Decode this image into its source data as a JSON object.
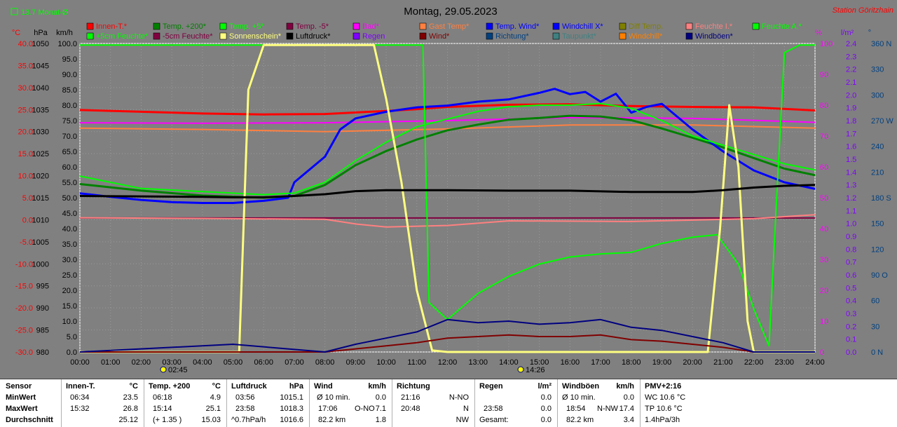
{
  "header": {
    "title": "Montag, 29.05.2023",
    "station": "Station Göritzhain",
    "monthly_avg": "13.7 Monat-Ø"
  },
  "axes": {
    "left_units": [
      "°C",
      "hPa",
      "km/h"
    ],
    "right_units": [
      "%",
      "l/m²",
      "°"
    ],
    "temp_ticks": [
      "40.0",
      "35.0",
      "30.0",
      "25.0",
      "20.0",
      "15.0",
      "10.0",
      "5.0",
      "0.0",
      "-5.0",
      "-10.0",
      "-15.0",
      "-20.0",
      "-25.0",
      "-30.0"
    ],
    "pressure_ticks": [
      "1050",
      "1045",
      "1040",
      "1035",
      "1030",
      "1025",
      "1020",
      "1015",
      "1010",
      "1005",
      "1000",
      "995",
      "990",
      "985",
      "980"
    ],
    "wind_ticks": [
      "100.0",
      "95.0",
      "90.0",
      "85.0",
      "80.0",
      "75.0",
      "70.0",
      "65.0",
      "60.0",
      "55.0",
      "50.0",
      "45.0",
      "40.0",
      "35.0",
      "30.0",
      "25.0",
      "20.0",
      "15.0",
      "10.0",
      "5.0",
      "0.0"
    ],
    "humidity_ticks": [
      "100",
      "90",
      "80",
      "70",
      "60",
      "50",
      "40",
      "30",
      "20",
      "10",
      "0"
    ],
    "rain_ticks": [
      "2.4",
      "2.3",
      "2.2",
      "2.1",
      "2.0",
      "1.9",
      "1.8",
      "1.7",
      "1.6",
      "1.5",
      "1.4",
      "1.3",
      "1.2",
      "1.1",
      "1.0",
      "0.9",
      "0.8",
      "0.7",
      "0.6",
      "0.5",
      "0.4",
      "0.3",
      "0.2",
      "0.1",
      "0.0"
    ],
    "direction_ticks": [
      "360 N",
      "330",
      "300",
      "270 W",
      "240",
      "210",
      "180 S",
      "150",
      "120",
      "90 O",
      "60",
      "30",
      "0 N"
    ],
    "time_ticks": [
      "00:00",
      "01:00",
      "02:00",
      "03:00",
      "04:00",
      "05:00",
      "06:00",
      "07:00",
      "08:00",
      "09:00",
      "10:00",
      "11:00",
      "12:00",
      "13:00",
      "14:00",
      "15:00",
      "16:00",
      "17:00",
      "18:00",
      "19:00",
      "20:00",
      "21:00",
      "22:00",
      "23:00",
      "24:00"
    ],
    "sunrise": "02:45",
    "sunset": "14:26"
  },
  "legend": [
    {
      "label": "Innen-T.*",
      "color": "#ff0000"
    },
    {
      "label": "Temp. +200*",
      "color": "#008000"
    },
    {
      "label": "Temp. +5*",
      "color": "#00ff00"
    },
    {
      "label": "Temp. -5*",
      "color": "#800040"
    },
    {
      "label": "Bad*",
      "color": "#ff00ff"
    },
    {
      "label": "Gast Temp*",
      "color": "#ff8040"
    },
    {
      "label": "Temp. Wind*",
      "color": "#0000ff"
    },
    {
      "label": "Windchill X*",
      "color": "#0000ff"
    },
    {
      "label": "Diff Temp.",
      "color": "#808000"
    },
    {
      "label": "Feuchte I.*",
      "color": "#ff8080"
    },
    {
      "label": "Feuchte A.*",
      "color": "#00ff00"
    },
    {
      "label": "+5cm Feuchte*",
      "color": "#00ff00"
    },
    {
      "label": "-5cm Feuchte*",
      "color": "#800040"
    },
    {
      "label": "Sonnenschein*",
      "color": "#ffff80"
    },
    {
      "label": "Luftdruck*",
      "color": "#000000"
    },
    {
      "label": "Regen",
      "color": "#8000ff"
    },
    {
      "label": "Wind*",
      "color": "#800000"
    },
    {
      "label": "Richtung*",
      "color": "#004080"
    },
    {
      "label": "Taupunkt*",
      "color": "#408080"
    },
    {
      "label": "Windchill*",
      "color": "#ff8000"
    },
    {
      "label": "Windböen*",
      "color": "#000080"
    }
  ],
  "colors": {
    "background": "#808080",
    "temp_axis": "#ff0000",
    "humidity_axis": "#ff00ff",
    "rain_axis": "#8000ff",
    "direction_axis": "#004080",
    "station_text": "#ff0000"
  },
  "chart_data": {
    "type": "line",
    "x_range": [
      "00:00",
      "24:00"
    ],
    "y_ranges": {
      "temperature_c": [
        -30,
        40
      ],
      "pressure_hpa": [
        980,
        1050
      ],
      "wind_kmh": [
        0,
        100
      ],
      "humidity_pct": [
        0,
        100
      ],
      "rain_lm2": [
        0,
        2.4
      ],
      "direction_deg": [
        0,
        360
      ]
    },
    "series": [
      {
        "name": "Innen-T.*",
        "axis": "temperature_c",
        "color": "#ff0000",
        "x": [
          0,
          2,
          4,
          6,
          8,
          10,
          11,
          12,
          14,
          16,
          18,
          20,
          22,
          24
        ],
        "y": [
          24.9,
          24.5,
          24.1,
          23.9,
          24.0,
          24.7,
          25.1,
          25.6,
          26.1,
          26.2,
          25.8,
          25.6,
          25.5,
          24.8
        ]
      },
      {
        "name": "Bad*",
        "axis": "temperature_c",
        "color": "#ff00ff",
        "x": [
          0,
          4,
          8,
          12,
          16,
          20,
          24
        ],
        "y": [
          22.0,
          21.9,
          22.0,
          22.5,
          23.2,
          23.0,
          22.1
        ]
      },
      {
        "name": "Gast Temp*",
        "axis": "temperature_c",
        "color": "#ff8040",
        "x": [
          0,
          4,
          8,
          12,
          16,
          20,
          24
        ],
        "y": [
          20.8,
          20.5,
          20.0,
          20.6,
          21.5,
          21.5,
          20.8
        ]
      },
      {
        "name": "Temp. -5*",
        "axis": "temperature_c",
        "color": "#800040",
        "x": [
          0,
          24
        ],
        "y": [
          0.4,
          0.4
        ]
      },
      {
        "name": "Temp. +200*",
        "axis": "temperature_c",
        "color": "#008000",
        "x": [
          0,
          2,
          4,
          6,
          7,
          8,
          9,
          10,
          11,
          12,
          13,
          14,
          15,
          16,
          17,
          18,
          19,
          20,
          21,
          22,
          23,
          24
        ],
        "y": [
          8.1,
          6.6,
          5.5,
          5.0,
          5.4,
          7.9,
          12.4,
          15.6,
          18.2,
          20.3,
          21.6,
          22.7,
          23.1,
          23.6,
          23.4,
          22.6,
          20.7,
          18.6,
          16.4,
          14.0,
          11.6,
          10.1
        ]
      },
      {
        "name": "Temp. Wind*",
        "axis": "temperature_c",
        "color": "#0000ff",
        "x": [
          0,
          1,
          2,
          3,
          4,
          5,
          6,
          6.8,
          7,
          8,
          8.5,
          9,
          10,
          11,
          12,
          13,
          14,
          15,
          15.5,
          16,
          16.5,
          17,
          17.5,
          18,
          18.5,
          19,
          20,
          21,
          22,
          23,
          24
        ],
        "y": [
          6.0,
          5.2,
          4.5,
          4.0,
          3.8,
          3.8,
          4.3,
          5.0,
          8.5,
          14.3,
          20.5,
          23.0,
          24.5,
          25.5,
          25.9,
          26.8,
          27.3,
          28.8,
          29.7,
          28.5,
          29.0,
          26.8,
          28.6,
          24.3,
          25.6,
          26.3,
          20.5,
          15.5,
          11.2,
          8.5,
          7.0
        ]
      },
      {
        "name": "+5cm Feuchte*",
        "axis": "humidity_pct",
        "color": "#00ff00",
        "x": [
          0,
          2,
          4,
          6,
          7,
          8,
          9,
          10,
          11,
          12,
          13,
          14,
          15,
          16,
          17,
          18,
          19,
          20,
          21,
          22,
          23,
          24
        ],
        "y": [
          57,
          53,
          52,
          51,
          51.5,
          55,
          62,
          68,
          73,
          75.5,
          78,
          79.5,
          80,
          80,
          80.5,
          79,
          75,
          70,
          67,
          64,
          61,
          59
        ]
      },
      {
        "name": "Feuchte I.*",
        "axis": "humidity_pct",
        "color": "#ff8080",
        "x": [
          0,
          4,
          8,
          9,
          10,
          12,
          14,
          18,
          22,
          24
        ],
        "y": [
          43.5,
          43.3,
          43.0,
          41.5,
          40.5,
          41,
          42.5,
          42.3,
          43.2,
          44.5
        ]
      },
      {
        "name": "Feuchte A.*",
        "axis": "humidity_pct",
        "color": "#00ff00",
        "x": [
          0,
          11.2,
          11.4,
          12,
          13,
          14,
          15,
          16,
          17,
          18,
          19,
          20,
          20.8,
          21.5,
          22,
          22.5,
          22.8,
          23,
          23.5,
          24
        ],
        "y": [
          99.5,
          99.5,
          16.0,
          10.5,
          19.0,
          24.5,
          28.5,
          30.8,
          31.8,
          32.3,
          35.2,
          37.2,
          38.0,
          28.5,
          14.0,
          2.0,
          60.0,
          97.0,
          99.5,
          99.5
        ]
      },
      {
        "name": "Sonnenschein*",
        "axis": "humidity_pct",
        "color": "#ffff80",
        "x": [
          0,
          5.2,
          5.5,
          6,
          9.6,
          10,
          10.5,
          11,
          11.5,
          12,
          20.5,
          20.9,
          21.2,
          21.5,
          21.8,
          22,
          24
        ],
        "y": [
          0,
          0,
          85,
          99.5,
          99.5,
          82,
          55,
          20,
          0.5,
          0,
          0,
          40,
          80,
          60,
          10,
          0,
          0
        ]
      },
      {
        "name": "Luftdruck*",
        "axis": "pressure_hpa",
        "color": "#000000",
        "x": [
          0,
          2,
          4,
          5,
          6,
          7,
          8,
          9,
          10,
          12,
          14,
          16,
          18,
          19,
          20,
          21,
          22,
          23,
          24
        ],
        "y": [
          1015.4,
          1015.3,
          1015.2,
          1015.1,
          1015.1,
          1015.4,
          1015.8,
          1016.5,
          1016.7,
          1016.7,
          1016.6,
          1016.6,
          1016.3,
          1016.3,
          1016.3,
          1016.7,
          1017.3,
          1017.7,
          1017.9
        ]
      },
      {
        "name": "Wind*",
        "axis": "wind_kmh",
        "color": "#800000",
        "x": [
          0,
          8,
          9,
          10,
          11,
          12,
          13,
          14,
          15,
          16,
          17,
          18,
          19,
          20,
          21,
          22,
          24
        ],
        "y": [
          0,
          0,
          1.0,
          2.0,
          3.0,
          4.5,
          5.0,
          5.5,
          5.0,
          5.0,
          5.5,
          4.0,
          3.5,
          2.5,
          1.5,
          0,
          0
        ]
      },
      {
        "name": "Windböen*",
        "axis": "wind_kmh",
        "color": "#000080",
        "x": [
          0,
          3,
          5,
          8,
          9,
          10,
          11,
          12,
          13,
          14,
          15,
          16,
          17,
          18,
          19,
          20,
          21,
          22,
          24
        ],
        "y": [
          0,
          1.5,
          2.5,
          0,
          2.5,
          4.5,
          6.5,
          10.5,
          9.5,
          10.0,
          9.0,
          9.5,
          10.5,
          8.0,
          7.0,
          5.0,
          3.0,
          0,
          0
        ]
      }
    ]
  },
  "stats": {
    "sensor": {
      "title": "Sensor",
      "rows": [
        "MinWert",
        "MaxWert",
        "Durchschnitt"
      ]
    },
    "innen": {
      "title": "Innen-T.",
      "unit": "°C",
      "min_time": "06:34",
      "min": "23.5",
      "max_time": "15:32",
      "max": "26.8",
      "avg": "25.12"
    },
    "temp200": {
      "title": "Temp. +200",
      "unit": "°C",
      "min_time": "06:18",
      "min": "4.9",
      "max_time": "15:14",
      "max": "25.1",
      "avg_delta": "(+ 1.35 )",
      "avg": "15.03"
    },
    "luftdruck": {
      "title": "Luftdruck",
      "unit": "hPa",
      "min_time": "03:56",
      "min": "1015.1",
      "max_time": "23:58",
      "max": "1018.3",
      "trend": "^0.7hPa/h",
      "avg": "1016.6"
    },
    "wind": {
      "title": "Wind",
      "unit": "km/h",
      "r1_label": "Ø 10 min.",
      "r1": "0.0",
      "r2_time": "17:06",
      "r2_dir": "O-NO",
      "r2": "7.1",
      "r3_label": "82.2 km",
      "r3": "1.8"
    },
    "richtung": {
      "title": "Richtung",
      "r1_time": "21:16",
      "r1": "N-NO",
      "r2_time": "20:48",
      "r2": "N",
      "r3": "NW"
    },
    "regen": {
      "title": "Regen",
      "unit": "l/m²",
      "r1": "0.0",
      "r2_time": "23:58",
      "r2": "0.0",
      "r3_label": "Gesamt:",
      "r3": "0.0"
    },
    "windboeen": {
      "title": "Windböen",
      "unit": "km/h",
      "r1_label": "Ø 10 min.",
      "r1": "0.0",
      "r2_time": "18:54",
      "r2_dir": "N-NW",
      "r2": "17.4",
      "r3_label": "82.2 km",
      "r3": "3.4"
    },
    "pmv": {
      "title": "PMV+2:16",
      "r1": "WC 10.6 °C",
      "r2": "TP 10.6 °C",
      "r3": "1.4hPa/3h"
    }
  }
}
